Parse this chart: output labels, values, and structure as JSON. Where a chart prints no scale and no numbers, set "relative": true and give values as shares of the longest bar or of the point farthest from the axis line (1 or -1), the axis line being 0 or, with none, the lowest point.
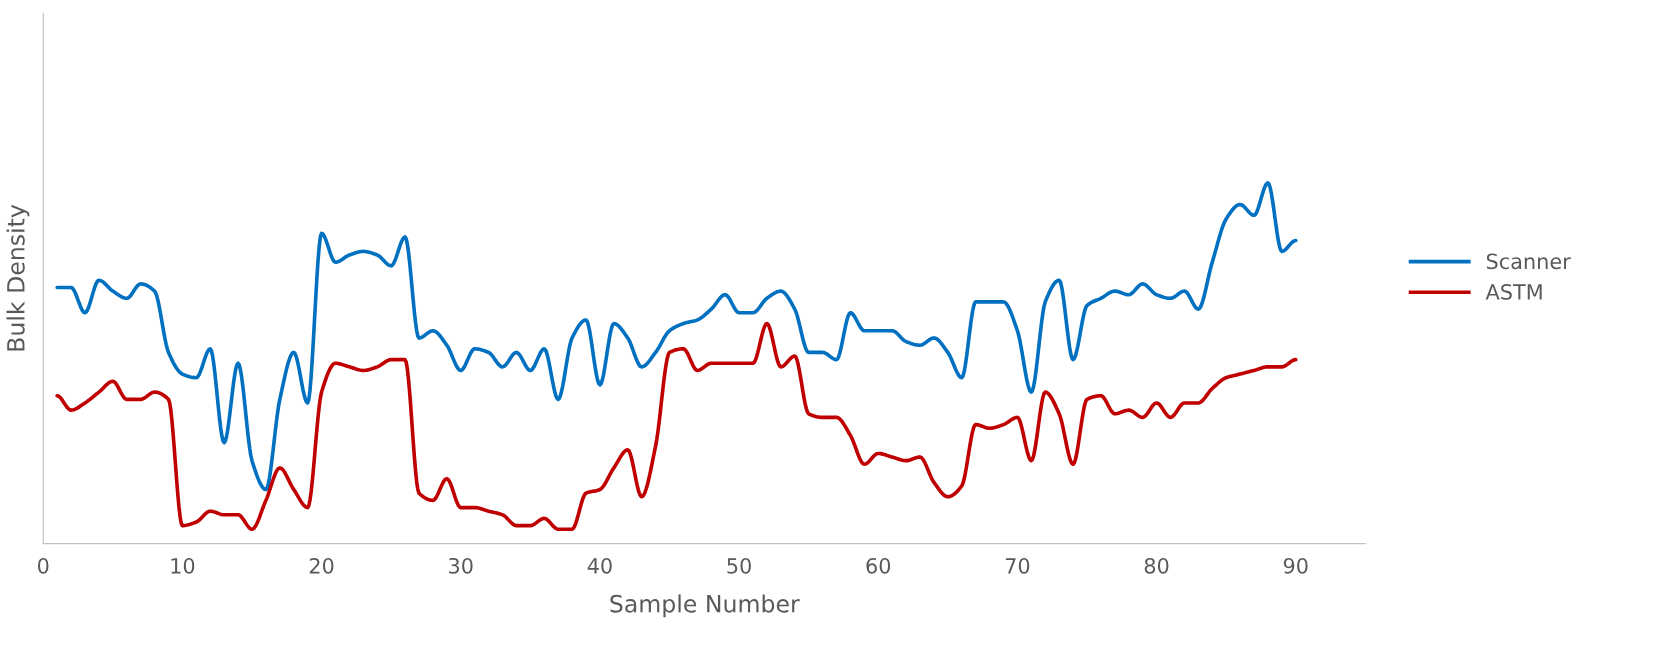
{
  "chart_data": {
    "type": "line",
    "xlabel": "Sample Number",
    "ylabel": "Bulk Density",
    "relative": true,
    "x": [
      1,
      2,
      3,
      4,
      5,
      6,
      7,
      8,
      9,
      10,
      11,
      12,
      13,
      14,
      15,
      16,
      17,
      18,
      19,
      20,
      21,
      22,
      23,
      24,
      25,
      26,
      27,
      28,
      29,
      30,
      31,
      32,
      33,
      34,
      35,
      36,
      37,
      38,
      39,
      40,
      41,
      42,
      43,
      44,
      45,
      46,
      47,
      48,
      49,
      50,
      51,
      52,
      53,
      54,
      55,
      56,
      57,
      58,
      59,
      60,
      61,
      62,
      63,
      64,
      65,
      66,
      67,
      68,
      69,
      70,
      71,
      72,
      73,
      74,
      75,
      76,
      77,
      78,
      79,
      80,
      81,
      82,
      83,
      84,
      85,
      86,
      87,
      88,
      89,
      90
    ],
    "xlim": [
      0,
      95
    ],
    "xticks": [
      0,
      10,
      20,
      30,
      40,
      50,
      60,
      70,
      80,
      90
    ],
    "grid": false,
    "legend": "right",
    "marker": "none",
    "line_style": "solid",
    "series": [
      {
        "name": "Scanner",
        "color": "#0070c0",
        "values": [
          0.71,
          0.71,
          0.64,
          0.73,
          0.7,
          0.68,
          0.72,
          0.7,
          0.53,
          0.47,
          0.46,
          0.54,
          0.28,
          0.5,
          0.23,
          0.15,
          0.4,
          0.53,
          0.39,
          0.86,
          0.78,
          0.8,
          0.81,
          0.8,
          0.77,
          0.85,
          0.57,
          0.59,
          0.55,
          0.48,
          0.54,
          0.53,
          0.49,
          0.53,
          0.48,
          0.54,
          0.4,
          0.57,
          0.62,
          0.44,
          0.61,
          0.57,
          0.49,
          0.53,
          0.59,
          0.61,
          0.62,
          0.65,
          0.69,
          0.64,
          0.64,
          0.68,
          0.7,
          0.65,
          0.53,
          0.53,
          0.51,
          0.64,
          0.59,
          0.59,
          0.59,
          0.56,
          0.55,
          0.57,
          0.53,
          0.46,
          0.67,
          0.67,
          0.67,
          0.59,
          0.42,
          0.67,
          0.73,
          0.51,
          0.66,
          0.68,
          0.7,
          0.69,
          0.72,
          0.69,
          0.68,
          0.7,
          0.65,
          0.78,
          0.9,
          0.94,
          0.91,
          1,
          0.81,
          0.84
        ]
      },
      {
        "name": "ASTM",
        "color": "#c00000",
        "values": [
          0.41,
          0.37,
          0.39,
          0.42,
          0.45,
          0.4,
          0.4,
          0.42,
          0.4,
          0.05,
          0.06,
          0.09,
          0.08,
          0.08,
          0.04,
          0.12,
          0.21,
          0.15,
          0.1,
          0.42,
          0.5,
          0.49,
          0.48,
          0.49,
          0.51,
          0.51,
          0.14,
          0.12,
          0.18,
          0.1,
          0.1,
          0.09,
          0.08,
          0.05,
          0.05,
          0.07,
          0.04,
          0.04,
          0.14,
          0.15,
          0.21,
          0.26,
          0.13,
          0.27,
          0.53,
          0.54,
          0.48,
          0.5,
          0.5,
          0.5,
          0.5,
          0.61,
          0.49,
          0.52,
          0.36,
          0.35,
          0.35,
          0.3,
          0.22,
          0.25,
          0.24,
          0.23,
          0.24,
          0.17,
          0.13,
          0.16,
          0.33,
          0.32,
          0.33,
          0.35,
          0.23,
          0.42,
          0.36,
          0.22,
          0.4,
          0.41,
          0.36,
          0.37,
          0.35,
          0.39,
          0.35,
          0.39,
          0.39,
          0.43,
          0.46,
          0.47,
          0.48,
          0.49,
          0.49,
          0.51
        ]
      }
    ]
  }
}
